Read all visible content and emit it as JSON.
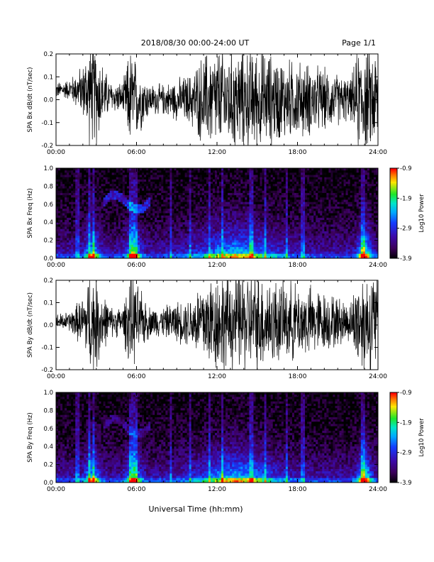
{
  "header": {
    "title": "2018/08/30  00:00-24:00 UT",
    "page": "Page 1/1"
  },
  "xaxis": {
    "label": "Universal Time (hh:mm)",
    "ticks": [
      "00:00",
      "06:00",
      "12:00",
      "18:00",
      "24:00"
    ],
    "range_hours": [
      0,
      24
    ]
  },
  "colorbar": {
    "label": "Log10 Power",
    "ticks": [
      "-0.9",
      "-1.9",
      "-2.9",
      "-3.9"
    ],
    "range": [
      -3.9,
      -0.9
    ]
  },
  "chart_data": [
    {
      "type": "line",
      "ylabel": "SPA Bx dB/dt (nT/sec)",
      "ylim": [
        -0.2,
        0.2
      ],
      "yticks": [
        "0.2",
        "0.1",
        "0.0",
        "-0.1",
        "-0.2"
      ],
      "envelope": {
        "x_hours": [
          0,
          1,
          2,
          2.5,
          3,
          3.5,
          4,
          5,
          5.5,
          6,
          7,
          8,
          9,
          10,
          11,
          12,
          13,
          14,
          15,
          16,
          17,
          18,
          19,
          20,
          21,
          22,
          22.5,
          23,
          23.5,
          24
        ],
        "amplitude": [
          0.03,
          0.04,
          0.1,
          0.2,
          0.2,
          0.12,
          0.06,
          0.06,
          0.2,
          0.15,
          0.06,
          0.06,
          0.08,
          0.1,
          0.18,
          0.2,
          0.2,
          0.2,
          0.2,
          0.18,
          0.16,
          0.15,
          0.14,
          0.12,
          0.1,
          0.08,
          0.2,
          0.2,
          0.2,
          0.2
        ]
      }
    },
    {
      "type": "heatmap",
      "ylabel": "SPA Bx Freq (Hz)",
      "ylim": [
        0,
        1.0
      ],
      "yticks": [
        "1.0",
        "0.8",
        "0.6",
        "0.4",
        "0.2",
        "0.0"
      ],
      "zlim": [
        -3.9,
        -0.9
      ]
    },
    {
      "type": "line",
      "ylabel": "SPA By dB/dt (nT/sec)",
      "ylim": [
        -0.2,
        0.2
      ],
      "yticks": [
        "0.2",
        "0.1",
        "0.0",
        "-0.1",
        "-0.2"
      ],
      "envelope": {
        "x_hours": [
          0,
          1,
          2,
          2.5,
          3,
          3.5,
          4,
          5,
          5.5,
          6,
          7,
          8,
          9,
          10,
          11,
          12,
          13,
          14,
          15,
          16,
          17,
          18,
          19,
          20,
          21,
          22,
          22.5,
          23,
          23.5,
          24
        ],
        "amplitude": [
          0.03,
          0.04,
          0.1,
          0.2,
          0.2,
          0.12,
          0.06,
          0.06,
          0.2,
          0.15,
          0.06,
          0.06,
          0.08,
          0.1,
          0.18,
          0.2,
          0.2,
          0.2,
          0.2,
          0.18,
          0.16,
          0.15,
          0.14,
          0.12,
          0.1,
          0.08,
          0.2,
          0.2,
          0.2,
          0.2
        ]
      }
    },
    {
      "type": "heatmap",
      "ylabel": "SPA By Freq (Hz)",
      "ylim": [
        0,
        1.0
      ],
      "yticks": [
        "1.0",
        "0.8",
        "0.6",
        "0.4",
        "0.2",
        "0.0"
      ],
      "zlim": [
        -3.9,
        -0.9
      ]
    }
  ]
}
